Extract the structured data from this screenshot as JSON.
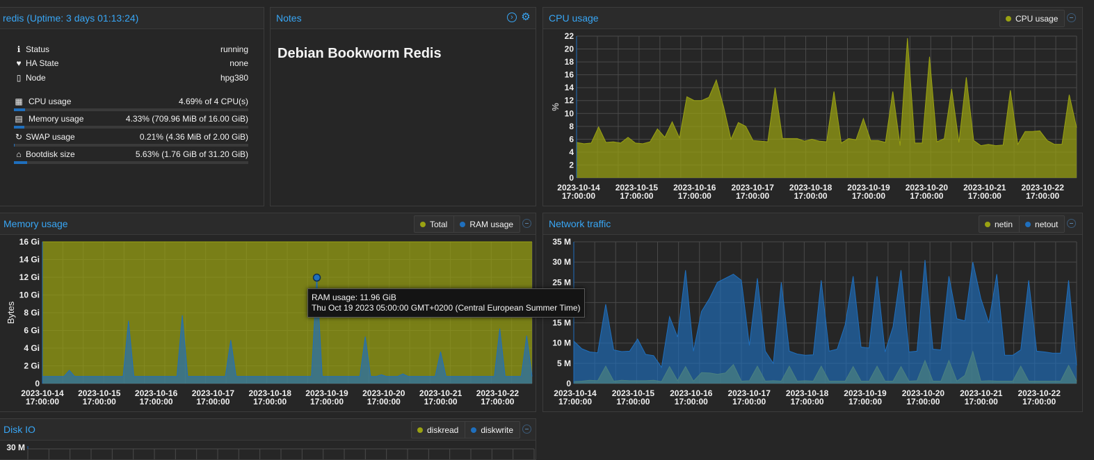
{
  "summary": {
    "title": "redis (Uptime: 3 days 01:13:24)",
    "rows": [
      {
        "icon": "info-icon",
        "glyph": "ℹ",
        "label": "Status",
        "value": "running"
      },
      {
        "icon": "heartbeat-icon",
        "glyph": "♥",
        "label": "HA State",
        "value": "none"
      },
      {
        "icon": "server-icon",
        "glyph": "▯",
        "label": "Node",
        "value": "hpg380"
      }
    ],
    "usage": [
      {
        "icon": "cpu-icon",
        "glyph": "▦",
        "label": "CPU usage",
        "value": "4.69% of 4 CPU(s)",
        "percent": 4.69
      },
      {
        "icon": "memory-icon",
        "glyph": "▤",
        "label": "Memory usage",
        "value": "4.33% (709.96 MiB of 16.00 GiB)",
        "percent": 4.33
      },
      {
        "icon": "refresh-icon",
        "glyph": "↻",
        "label": "SWAP usage",
        "value": "0.21% (4.36 MiB of 2.00 GiB)",
        "percent": 0.21
      },
      {
        "icon": "hdd-icon",
        "glyph": "⌂",
        "label": "Bootdisk size",
        "value": "5.63% (1.76 GiB of 31.20 GiB)",
        "percent": 5.63
      }
    ]
  },
  "notes": {
    "title": "Notes",
    "content": "Debian Bookworm Redis"
  },
  "colors": {
    "accent": "#38a6f5",
    "series_green": "#9aa212",
    "series_blue": "#1f6fbd"
  },
  "x_axis_ticks": [
    [
      "2023-10-14",
      "17:00:00"
    ],
    [
      "2023-10-15",
      "17:00:00"
    ],
    [
      "2023-10-16",
      "17:00:00"
    ],
    [
      "2023-10-17",
      "17:00:00"
    ],
    [
      "2023-10-18",
      "17:00:00"
    ],
    [
      "2023-10-19",
      "17:00:00"
    ],
    [
      "2023-10-20",
      "17:00:00"
    ],
    [
      "2023-10-21",
      "17:00:00"
    ],
    [
      "2023-10-22",
      "17:00:00"
    ]
  ],
  "chart_data": [
    {
      "id": "cpu",
      "title": "CPU usage",
      "type": "area",
      "ylabel": "%",
      "ylim": [
        0,
        22
      ],
      "yticks": [
        0,
        2,
        4,
        6,
        8,
        10,
        12,
        14,
        16,
        18,
        20,
        22
      ],
      "ytick_labels": [
        "0",
        "2",
        "4",
        "6",
        "8",
        "10",
        "12",
        "14",
        "16",
        "18",
        "20",
        "22"
      ],
      "series": [
        {
          "name": "CPU usage",
          "color": "#9aa212",
          "values": [
            5.5,
            5.3,
            5.4,
            7.9,
            5.5,
            5.6,
            5.4,
            6.3,
            5.4,
            5.3,
            5.6,
            7.6,
            6.3,
            8.7,
            6.2,
            12.6,
            12,
            12,
            12.5,
            15.2,
            11,
            6,
            8.6,
            8,
            5.8,
            5.7,
            5.6,
            14,
            6.1,
            6.1,
            6.1,
            5.7,
            6,
            5.7,
            5.6,
            13.4,
            5.4,
            6.1,
            5.9,
            9.2,
            5.8,
            5.8,
            5.5,
            13.4,
            5,
            21.7,
            5.4,
            5.4,
            18.8,
            5.6,
            6.1,
            13.8,
            5.5,
            15.6,
            5.8,
            5,
            5.2,
            5,
            5.1,
            13.6,
            5.2,
            7.2,
            7.2,
            7.3,
            5.8,
            5.2,
            5.2,
            12.9,
            7.8
          ]
        }
      ]
    },
    {
      "id": "memory",
      "title": "Memory usage",
      "type": "area",
      "ylabel": "Bytes",
      "ylim": [
        0,
        16
      ],
      "yticks": [
        0,
        2,
        4,
        6,
        8,
        10,
        12,
        14,
        16
      ],
      "ytick_labels": [
        "0",
        "2 Gi",
        "4 Gi",
        "6 Gi",
        "8 Gi",
        "10 Gi",
        "12 Gi",
        "14 Gi",
        "16 Gi"
      ],
      "series": [
        {
          "name": "Total",
          "color": "#9aa212",
          "values": [
            16,
            16,
            16,
            16,
            16,
            16,
            16,
            16,
            16,
            16,
            16,
            16,
            16,
            16,
            16,
            16,
            16,
            16,
            16,
            16,
            16,
            16,
            16,
            16,
            16,
            16,
            16,
            16,
            16,
            16,
            16,
            16,
            16,
            16,
            16,
            16,
            16,
            16,
            16,
            16,
            16,
            16,
            16,
            16,
            16,
            16,
            16,
            16,
            16,
            16,
            16,
            16,
            16,
            16,
            16,
            16,
            16,
            16,
            16,
            16,
            16,
            16,
            16,
            16,
            16,
            16,
            16,
            16,
            16,
            16,
            16,
            16,
            16,
            16,
            16,
            16,
            16,
            16,
            16,
            16,
            16,
            16,
            16,
            16,
            16,
            16,
            16,
            16,
            16,
            16,
            16,
            16
          ]
        },
        {
          "name": "RAM usage",
          "color": "#1f6fbd",
          "values": [
            0.8,
            0.8,
            0.8,
            0.8,
            0.8,
            1.5,
            0.8,
            0.8,
            0.8,
            0.8,
            0.8,
            0.8,
            0.8,
            0.8,
            0.8,
            0.8,
            7.1,
            0.8,
            0.8,
            0.8,
            0.8,
            0.8,
            0.8,
            0.8,
            0.8,
            0.8,
            7.7,
            0.8,
            0.8,
            0.8,
            0.8,
            0.8,
            0.8,
            0.8,
            0.8,
            4.9,
            0.8,
            0.8,
            0.8,
            0.8,
            0.8,
            0.8,
            0.8,
            0.8,
            0.8,
            0.8,
            0.8,
            0.8,
            0.8,
            0.8,
            0.8,
            11.96,
            0.8,
            0.8,
            0.8,
            0.8,
            0.8,
            0.8,
            0.8,
            0.8,
            5.3,
            0.8,
            0.8,
            1,
            0.8,
            0.8,
            0.8,
            1.1,
            0.8,
            0.8,
            0.8,
            0.8,
            0.8,
            0.8,
            3.6,
            0.8,
            0.8,
            0.8,
            0.8,
            0.8,
            0.8,
            0.8,
            0.8,
            0.8,
            0.8,
            6.2,
            0.8,
            0.8,
            0.8,
            0.8,
            5.4,
            0.8
          ]
        }
      ],
      "marker": {
        "series": "RAM usage",
        "index": 51,
        "value": 11.96
      }
    },
    {
      "id": "network",
      "title": "Network traffic",
      "type": "area",
      "ylabel": "",
      "ylim": [
        0,
        35
      ],
      "yticks": [
        0,
        5,
        10,
        15,
        20,
        25,
        30,
        35
      ],
      "ytick_labels": [
        "0",
        "5 M",
        "10 M",
        "15 M",
        "20 M",
        "25 M",
        "30 M",
        "35 M"
      ],
      "series": [
        {
          "name": "netin",
          "color": "#9aa212",
          "values": [
            0.5,
            0.6,
            0.8,
            0.7,
            4.3,
            0.6,
            0.8,
            0.7,
            0.7,
            0.7,
            0.8,
            0.5,
            4.2,
            0.7,
            4.2,
            0.6,
            2.7,
            2.6,
            2.3,
            2.6,
            4.7,
            0.6,
            0.7,
            4.3,
            0.6,
            0.7,
            0.6,
            4.3,
            0.6,
            0.7,
            0.6,
            4.3,
            0.6,
            0.6,
            0.6,
            4.2,
            0.6,
            0.6,
            4.3,
            0.6,
            0.6,
            4.2,
            0.6,
            0.7,
            5.7,
            0.6,
            0.6,
            5.7,
            0.6,
            2,
            7.9,
            0.6,
            0.7,
            0.6,
            0.6,
            0.6,
            4.3,
            0.6,
            0.6,
            0.6,
            0.6,
            0.6,
            4.5,
            0.6
          ]
        },
        {
          "name": "netout",
          "color": "#1f6fbd",
          "values": [
            10.5,
            8.6,
            7.8,
            7.6,
            19.6,
            8.3,
            7.9,
            8,
            11,
            7.2,
            6.9,
            4,
            16.5,
            11.5,
            28,
            8,
            17.8,
            21,
            25,
            26,
            27,
            25.5,
            9.4,
            26,
            8,
            5,
            25,
            8,
            7.3,
            7,
            7.1,
            25.5,
            8,
            8.5,
            14.5,
            26.5,
            9,
            8.8,
            26.5,
            7.8,
            14,
            28,
            7.8,
            8,
            30.5,
            8.5,
            8.3,
            26.5,
            16,
            15.5,
            30,
            21,
            15,
            27,
            7,
            7,
            8.3,
            25.5,
            8,
            7.8,
            7.5,
            7.5,
            25.5,
            4.5
          ]
        }
      ]
    },
    {
      "id": "diskio",
      "title": "Disk IO",
      "type": "area",
      "ylabel": "",
      "ylim": [
        0,
        30
      ],
      "yticks": [
        30
      ],
      "ytick_labels": [
        "30 M"
      ],
      "series": [
        {
          "name": "diskread",
          "color": "#9aa212",
          "values": []
        },
        {
          "name": "diskwrite",
          "color": "#1f6fbd",
          "values": []
        }
      ]
    }
  ],
  "tooltip": {
    "line1": "RAM usage: 11.96 GiB",
    "line2": "Thu Oct 19 2023 05:00:00 GMT+0200 (Central European Summer Time)"
  }
}
